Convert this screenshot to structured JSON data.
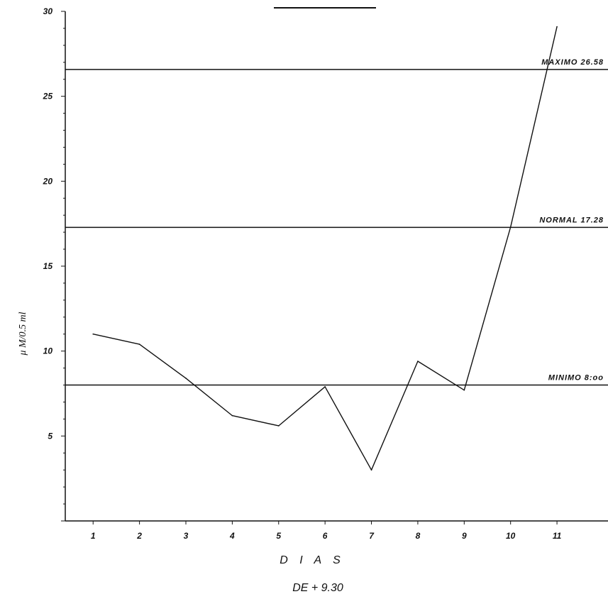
{
  "chart_data": {
    "type": "line",
    "xlabel": "D I A S",
    "ylabel": "μ M/0.5 ml",
    "subtitle": "DE  +   9.30",
    "x_ticks": [
      "1",
      "2",
      "3",
      "4",
      "5",
      "6",
      "7",
      "8",
      "9",
      "10",
      "11"
    ],
    "y_ticks": [
      "5",
      "10",
      "15",
      "20",
      "25",
      "30"
    ],
    "ylim": [
      0,
      30
    ],
    "xlim": [
      0.4,
      12.1
    ],
    "grid": false,
    "series": [
      {
        "x": [
          1,
          2,
          3,
          4,
          5,
          6,
          7,
          8,
          9,
          10,
          11
        ],
        "y": [
          11.0,
          10.4,
          8.4,
          6.2,
          5.6,
          7.9,
          3.0,
          9.4,
          7.7,
          17.3,
          29.1
        ]
      }
    ],
    "reference_lines": [
      {
        "y": 26.58,
        "label": "MAXIMO  26.58"
      },
      {
        "y": 17.28,
        "label": "NORMAL  17.28"
      },
      {
        "y": 8.0,
        "label": "MINIMO  8:oo"
      }
    ],
    "colors": {
      "line": "#111111",
      "axis": "#111111",
      "background": "#ffffff"
    }
  }
}
